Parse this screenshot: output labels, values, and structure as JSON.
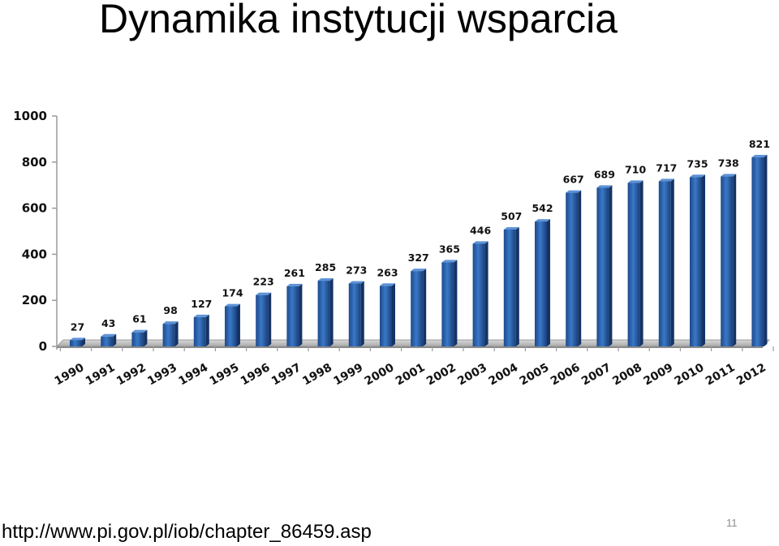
{
  "slide": {
    "title": "Dynamika instytucji wsparcia",
    "source_url": "http://www.pi.gov.pl/iob/chapter_86459.asp",
    "page_number": "11"
  },
  "chart_data": {
    "type": "bar",
    "title": "",
    "xlabel": "",
    "ylabel": "",
    "ylim": [
      0,
      1000
    ],
    "yticks": [
      0,
      200,
      400,
      600,
      800,
      1000
    ],
    "grid": false,
    "legend": "none",
    "bar_color": "#2a5fa8",
    "categories": [
      "1990",
      "1991",
      "1992",
      "1993",
      "1994",
      "1995",
      "1996",
      "1997",
      "1998",
      "1999",
      "2000",
      "2001",
      "2002",
      "2003",
      "2004",
      "2005",
      "2006",
      "2007",
      "2008",
      "2009",
      "2010",
      "2011",
      "2012"
    ],
    "values": [
      27,
      43,
      61,
      98,
      127,
      174,
      223,
      261,
      285,
      273,
      263,
      327,
      365,
      446,
      507,
      542,
      667,
      689,
      710,
      717,
      735,
      738,
      821
    ]
  }
}
